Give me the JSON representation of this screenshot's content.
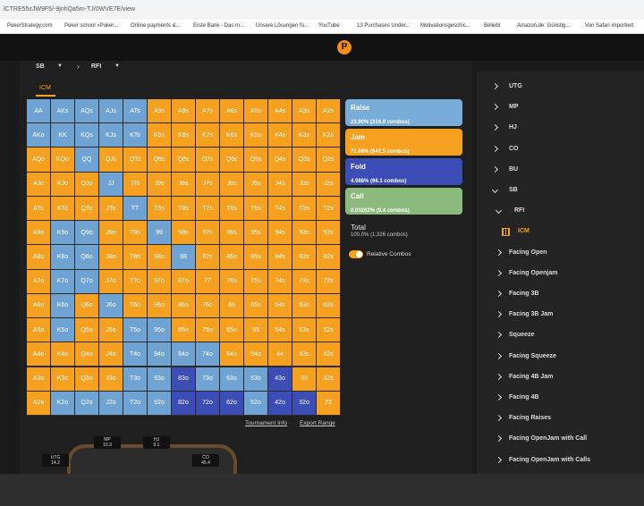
{
  "browser": {
    "url": "lCTRE55zJW9F5/-9jnhQa5m-TJ/0WVE7E/view",
    "bookmarks": [
      "PokerStrategy.com",
      "Poker school »Poker...",
      "Online payments &...",
      "Erste Bank - Das m...",
      "Unsere Lösungen fü...",
      "YouTube",
      "13 Purchases Under...",
      "Motivationsgeschic...",
      "Beliebt",
      "Amazon.de: Günstig...",
      "Von Safari importiert"
    ]
  },
  "header": {
    "logo": "P"
  },
  "breadcrumb": {
    "position": "SB",
    "spot": "RFI"
  },
  "tab": "ICM",
  "grid": {
    "labels": [
      [
        "AA",
        "AKs",
        "AQs",
        "AJs",
        "ATs",
        "A9s",
        "A8s",
        "A7s",
        "A6s",
        "A5s",
        "A4s",
        "A3s",
        "A2s"
      ],
      [
        "AKo",
        "KK",
        "KQs",
        "KJs",
        "KTs",
        "K9s",
        "K8s",
        "K7s",
        "K6s",
        "K5s",
        "K4s",
        "K3s",
        "K2s"
      ],
      [
        "AQo",
        "KQo",
        "QQ",
        "QJs",
        "QTs",
        "Q9s",
        "Q8s",
        "Q7s",
        "Q6s",
        "Q5s",
        "Q4s",
        "Q3s",
        "Q2s"
      ],
      [
        "AJo",
        "KJo",
        "QJo",
        "JJ",
        "JTs",
        "J9s",
        "J8s",
        "J7s",
        "J6s",
        "J5s",
        "J4s",
        "J3s",
        "J2s"
      ],
      [
        "ATo",
        "KTo",
        "QTo",
        "JTo",
        "TT",
        "T9s",
        "T8s",
        "T7s",
        "T6s",
        "T5s",
        "T4s",
        "T3s",
        "T2s"
      ],
      [
        "A9o",
        "K9o",
        "Q9o",
        "J9o",
        "T9o",
        "99",
        "98s",
        "97s",
        "96s",
        "95s",
        "94s",
        "93s",
        "92s"
      ],
      [
        "A8o",
        "K8o",
        "Q8o",
        "J8o",
        "T8o",
        "98o",
        "88",
        "87s",
        "86s",
        "85s",
        "84s",
        "83s",
        "82s"
      ],
      [
        "A7o",
        "K7o",
        "Q7o",
        "J7o",
        "T7o",
        "97o",
        "87o",
        "77",
        "76s",
        "75s",
        "74s",
        "73s",
        "72s"
      ],
      [
        "A6o",
        "K6o",
        "Q6o",
        "J6o",
        "T6o",
        "96o",
        "86o",
        "76o",
        "66",
        "65s",
        "64s",
        "63s",
        "62s"
      ],
      [
        "A5o",
        "K5o",
        "Q5o",
        "J5o",
        "T5o",
        "95o",
        "85o",
        "75o",
        "65o",
        "55",
        "54s",
        "53s",
        "52s"
      ],
      [
        "A4o",
        "K4o",
        "Q4o",
        "J4o",
        "T4o",
        "94o",
        "84o",
        "74o",
        "64o",
        "54o",
        "44",
        "43s",
        "42s"
      ],
      [
        "A3o",
        "K3o",
        "Q3o",
        "J3o",
        "T3o",
        "93o",
        "83o",
        "73o",
        "63o",
        "53o",
        "43o",
        "33",
        "32s"
      ],
      [
        "A2o",
        "K2o",
        "Q2o",
        "J2o",
        "T2o",
        "92o",
        "82o",
        "72o",
        "62o",
        "52o",
        "42o",
        "32o",
        "22"
      ]
    ],
    "colors": [
      [
        "#6fa3d3",
        "#6fa3d3",
        "#6fa3d3",
        "#6fa3d3",
        "#6fa3d3",
        "#f5a01e",
        "#f5a01e",
        "#f5a01e",
        "#f5a01e",
        "#f5a01e",
        "#f5a01e",
        "#f5a01e",
        "#f5a01e"
      ],
      [
        "#6fa3d3",
        "#6fa3d3",
        "#6fa3d3",
        "#6fa3d3",
        "#6fa3d3",
        "#f5a01e",
        "#f5a01e",
        "#f5a01e",
        "#f5a01e",
        "#f5a01e",
        "#f5a01e",
        "#f5a01e",
        "#f5a01e"
      ],
      [
        "#f5a01e",
        "#f5a01e",
        "#6fa3d3",
        "#f5a01e",
        "#f5a01e",
        "#f5a01e",
        "#f5a01e",
        "#f5a01e",
        "#f5a01e",
        "#f5a01e",
        "#f5a01e",
        "#f5a01e",
        "#f5a01e"
      ],
      [
        "#f5a01e",
        "#f5a01e",
        "#f5a01e",
        "#6fa3d3",
        "#f5a01e",
        "#f5a01e",
        "#f5a01e",
        "#f5a01e",
        "#f5a01e",
        "#f5a01e",
        "#f5a01e",
        "#f5a01e",
        "#f5a01e"
      ],
      [
        "#f5a01e",
        "#f5a01e",
        "#f5a01e",
        "#f5a01e",
        "#6fa3d3",
        "#f5a01e",
        "#f5a01e",
        "#f5a01e",
        "#f5a01e",
        "#f5a01e",
        "#f5a01e",
        "#f5a01e",
        "#f5a01e"
      ],
      [
        "#f5a01e",
        "#6fa3d3",
        "#6fa3d3",
        "#f5a01e",
        "#f5a01e",
        "#6fa3d3",
        "#f5a01e",
        "#f5a01e",
        "#f5a01e",
        "#f5a01e",
        "#f5a01e",
        "#f5a01e",
        "#f5a01e"
      ],
      [
        "#f5a01e",
        "#6fa3d3",
        "#6fa3d3",
        "#f5a01e",
        "#f5a01e",
        "#f5a01e",
        "#6fa3d3",
        "#f5a01e",
        "#f5a01e",
        "#f5a01e",
        "#f5a01e",
        "#f5a01e",
        "#f5a01e"
      ],
      [
        "#f5a01e",
        "#6fa3d3",
        "#6fa3d3",
        "#f5a01e",
        "#f5a01e",
        "#f5a01e",
        "#f5a01e",
        "#f5a01e",
        "#f5a01e",
        "#f5a01e",
        "#f5a01e",
        "#f5a01e",
        "#f5a01e"
      ],
      [
        "#f5a01e",
        "#6fa3d3",
        "#f5a01e",
        "#6fa3d3",
        "#f5a01e",
        "#f5a01e",
        "#f5a01e",
        "#f5a01e",
        "#f5a01e",
        "#f5a01e",
        "#f5a01e",
        "#f5a01e",
        "#f5a01e"
      ],
      [
        "#f5a01e",
        "#6fa3d3",
        "#f5a01e",
        "#f5a01e",
        "#6fa3d3",
        "#6fa3d3",
        "#f5a01e",
        "#f5a01e",
        "#f5a01e",
        "#f5a01e",
        "#f5a01e",
        "#f5a01e",
        "#f5a01e"
      ],
      [
        "#f5a01e",
        "#f5a01e",
        "#f5a01e",
        "#f5a01e",
        "#6fa3d3",
        "#6fa3d3",
        "#6fa3d3",
        "#6fa3d3",
        "#f5a01e",
        "#f5a01e",
        "#f5a01e",
        "#f5a01e",
        "#f5a01e"
      ],
      [
        "#f5a01e",
        "#f5a01e",
        "#f5a01e",
        "#f5a01e",
        "#6fa3d3",
        "#6fa3d3",
        "#3c4db5",
        "#6fa3d3",
        "#6fa3d3",
        "#6fa3d3",
        "#3c4db5",
        "#f5a01e",
        "#f5a01e"
      ],
      [
        "#f5a01e",
        "#6fa3d3",
        "#6fa3d3",
        "#6fa3d3",
        "#6fa3d3",
        "#6fa3d3",
        "#3c4db5",
        "#3c4db5",
        "#3c4db5",
        "#6fa3d3",
        "#3c4db5",
        "#3c4db5",
        "#f5a01e"
      ]
    ]
  },
  "legend": [
    {
      "name": "Raise",
      "detail": "23.90% (316.9 combos)",
      "color": "#78acd9"
    },
    {
      "name": "Jam",
      "detail": "71.08% (942.5 combos)",
      "color": "#f5a01e"
    },
    {
      "name": "Fold",
      "detail": "4.988% (66.1 combos)",
      "color": "#3c4db5"
    },
    {
      "name": "Call",
      "detail": "0.03262% (0.4 combos)",
      "color": "#8cba7c"
    }
  ],
  "total": {
    "label": "Total",
    "detail": "100.0% (1,326 combos)"
  },
  "toggle": "Relative Combos",
  "links": [
    "Tournament Info",
    "Export Range"
  ],
  "table": {
    "seats": [
      {
        "name": "MP",
        "stack": "10.3"
      },
      {
        "name": "HJ",
        "stack": "9.1"
      },
      {
        "name": "UTG",
        "stack": "14.2"
      },
      {
        "name": "CO",
        "stack": "45.4"
      }
    ]
  },
  "sidebar": [
    "UTG",
    "MP",
    "HJ",
    "CO",
    "BU",
    "SB",
    "RFI",
    "ICM",
    "Facing Open",
    "Facing Openjam",
    "Facing 3B",
    "Facing 3B Jam",
    "Squeeze",
    "Facing Squeeze",
    "Facing 4B Jam",
    "Facing 4B",
    "Facing Raises",
    "Facing OpenJam with Call",
    "Facing OpenJam with Calls"
  ]
}
